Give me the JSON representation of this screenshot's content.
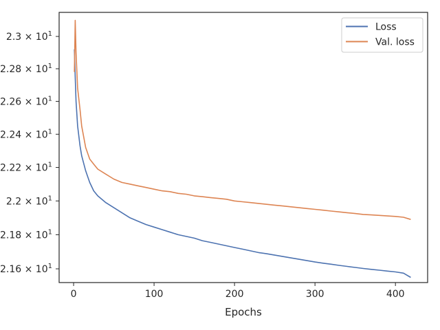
{
  "chart_data": {
    "type": "line",
    "title": "",
    "xlabel": "Epochs",
    "ylabel": "",
    "xlim": [
      -18,
      440
    ],
    "ylim": [
      21.52,
      23.15
    ],
    "y_scale": "log",
    "grid": false,
    "legend_position": "top-right",
    "x_ticks": [
      {
        "value": 0,
        "label": "0"
      },
      {
        "value": 100,
        "label": "100"
      },
      {
        "value": 200,
        "label": "200"
      },
      {
        "value": 300,
        "label": "300"
      },
      {
        "value": 400,
        "label": "400"
      }
    ],
    "y_ticks": [
      {
        "value": 23.0,
        "mantissa": "2.3",
        "exp": "1"
      },
      {
        "value": 22.8,
        "mantissa": "2.28",
        "exp": "1"
      },
      {
        "value": 22.6,
        "mantissa": "2.26",
        "exp": "1"
      },
      {
        "value": 22.4,
        "mantissa": "2.24",
        "exp": "1"
      },
      {
        "value": 22.2,
        "mantissa": "2.22",
        "exp": "1"
      },
      {
        "value": 22.0,
        "mantissa": "2.2",
        "exp": "1"
      },
      {
        "value": 21.8,
        "mantissa": "2.18",
        "exp": "1"
      },
      {
        "value": 21.6,
        "mantissa": "2.16",
        "exp": "1"
      }
    ],
    "series": [
      {
        "name": "Loss",
        "color": "#4c72b0",
        "points": [
          [
            1,
            22.92
          ],
          [
            2,
            22.75
          ],
          [
            3,
            22.6
          ],
          [
            5,
            22.45
          ],
          [
            8,
            22.33
          ],
          [
            10,
            22.27
          ],
          [
            15,
            22.18
          ],
          [
            20,
            22.11
          ],
          [
            25,
            22.06
          ],
          [
            30,
            22.03
          ],
          [
            40,
            21.99
          ],
          [
            50,
            21.96
          ],
          [
            60,
            21.93
          ],
          [
            70,
            21.9
          ],
          [
            80,
            21.88
          ],
          [
            90,
            21.86
          ],
          [
            100,
            21.845
          ],
          [
            110,
            21.83
          ],
          [
            120,
            21.815
          ],
          [
            130,
            21.8
          ],
          [
            140,
            21.79
          ],
          [
            150,
            21.78
          ],
          [
            160,
            21.765
          ],
          [
            170,
            21.755
          ],
          [
            180,
            21.745
          ],
          [
            190,
            21.735
          ],
          [
            200,
            21.725
          ],
          [
            210,
            21.715
          ],
          [
            220,
            21.705
          ],
          [
            230,
            21.695
          ],
          [
            240,
            21.688
          ],
          [
            250,
            21.68
          ],
          [
            260,
            21.672
          ],
          [
            270,
            21.664
          ],
          [
            280,
            21.656
          ],
          [
            290,
            21.648
          ],
          [
            300,
            21.64
          ],
          [
            310,
            21.633
          ],
          [
            320,
            21.627
          ],
          [
            330,
            21.62
          ],
          [
            340,
            21.614
          ],
          [
            350,
            21.608
          ],
          [
            360,
            21.602
          ],
          [
            370,
            21.597
          ],
          [
            380,
            21.592
          ],
          [
            390,
            21.587
          ],
          [
            400,
            21.582
          ],
          [
            410,
            21.575
          ],
          [
            419,
            21.55
          ]
        ]
      },
      {
        "name": "Val. loss",
        "color": "#dd8452",
        "points": [
          [
            1,
            22.78
          ],
          [
            2,
            23.1
          ],
          [
            3,
            22.9
          ],
          [
            5,
            22.68
          ],
          [
            8,
            22.55
          ],
          [
            10,
            22.45
          ],
          [
            15,
            22.32
          ],
          [
            20,
            22.25
          ],
          [
            25,
            22.22
          ],
          [
            30,
            22.19
          ],
          [
            40,
            22.16
          ],
          [
            50,
            22.13
          ],
          [
            60,
            22.11
          ],
          [
            70,
            22.1
          ],
          [
            80,
            22.09
          ],
          [
            90,
            22.08
          ],
          [
            100,
            22.07
          ],
          [
            110,
            22.06
          ],
          [
            120,
            22.055
          ],
          [
            130,
            22.045
          ],
          [
            140,
            22.04
          ],
          [
            150,
            22.03
          ],
          [
            160,
            22.025
          ],
          [
            170,
            22.02
          ],
          [
            180,
            22.015
          ],
          [
            190,
            22.01
          ],
          [
            200,
            22.0
          ],
          [
            210,
            21.995
          ],
          [
            220,
            21.99
          ],
          [
            230,
            21.985
          ],
          [
            240,
            21.98
          ],
          [
            250,
            21.975
          ],
          [
            260,
            21.97
          ],
          [
            270,
            21.965
          ],
          [
            280,
            21.96
          ],
          [
            290,
            21.955
          ],
          [
            300,
            21.95
          ],
          [
            310,
            21.945
          ],
          [
            320,
            21.94
          ],
          [
            330,
            21.935
          ],
          [
            340,
            21.93
          ],
          [
            350,
            21.925
          ],
          [
            360,
            21.92
          ],
          [
            370,
            21.917
          ],
          [
            380,
            21.914
          ],
          [
            390,
            21.911
          ],
          [
            400,
            21.908
          ],
          [
            410,
            21.903
          ],
          [
            419,
            21.89
          ]
        ]
      }
    ]
  }
}
